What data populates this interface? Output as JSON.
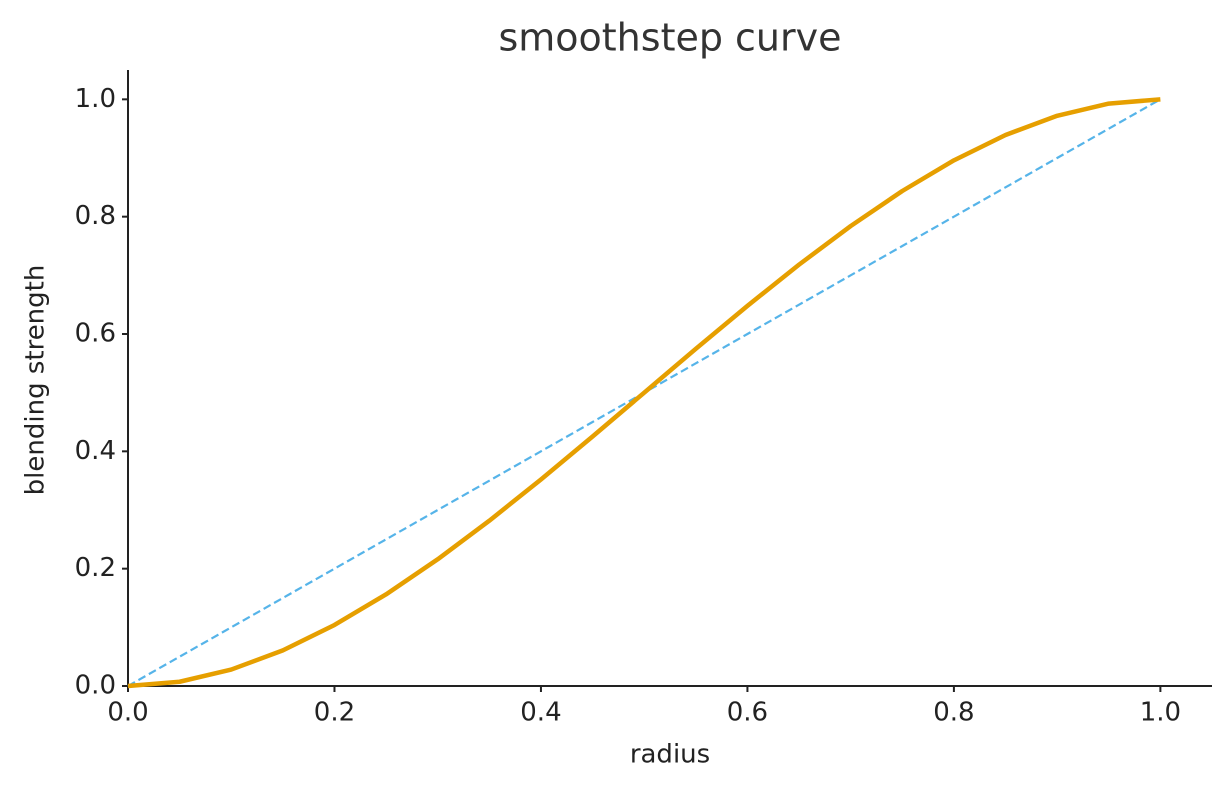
{
  "chart_data": {
    "type": "line",
    "title": "smoothstep curve",
    "x_label": "radius",
    "y_label": "blending strength",
    "x": [
      0,
      0.05,
      0.1,
      0.15,
      0.2,
      0.25,
      0.3,
      0.35,
      0.4,
      0.45,
      0.5,
      0.55,
      0.6,
      0.65,
      0.7,
      0.75,
      0.8,
      0.85,
      0.9,
      0.95,
      1
    ],
    "series": [
      {
        "color": "#e69f00",
        "linestyle": "solid",
        "values": [
          0,
          0.00725,
          0.028,
          0.06075,
          0.104,
          0.15625,
          0.216,
          0.28175,
          0.352,
          0.42525,
          0.5,
          0.57475,
          0.648,
          0.71825,
          0.784,
          0.84375,
          0.896,
          0.93925,
          0.972,
          0.99275,
          1
        ]
      },
      {
        "color": "#56b4e9",
        "linestyle": "dashed",
        "values": [
          0,
          0.05,
          0.1,
          0.15,
          0.2,
          0.25,
          0.3,
          0.35,
          0.4,
          0.45,
          0.5,
          0.55,
          0.6,
          0.65,
          0.7,
          0.75,
          0.8,
          0.85,
          0.9,
          0.95,
          1
        ]
      }
    ],
    "xlim": [
      0,
      1.05
    ],
    "ylim": [
      0,
      1.05
    ],
    "xticks": [
      {
        "value": 0,
        "label": "0.0"
      },
      0.2,
      0.4,
      0.6,
      0.8,
      {
        "value": 1,
        "label": "1.0"
      }
    ],
    "yticks": [
      {
        "value": 0,
        "label": "0.0"
      },
      0.2,
      0.4,
      0.6,
      0.8,
      {
        "value": 1,
        "label": "1.0"
      }
    ],
    "grid": false
  }
}
